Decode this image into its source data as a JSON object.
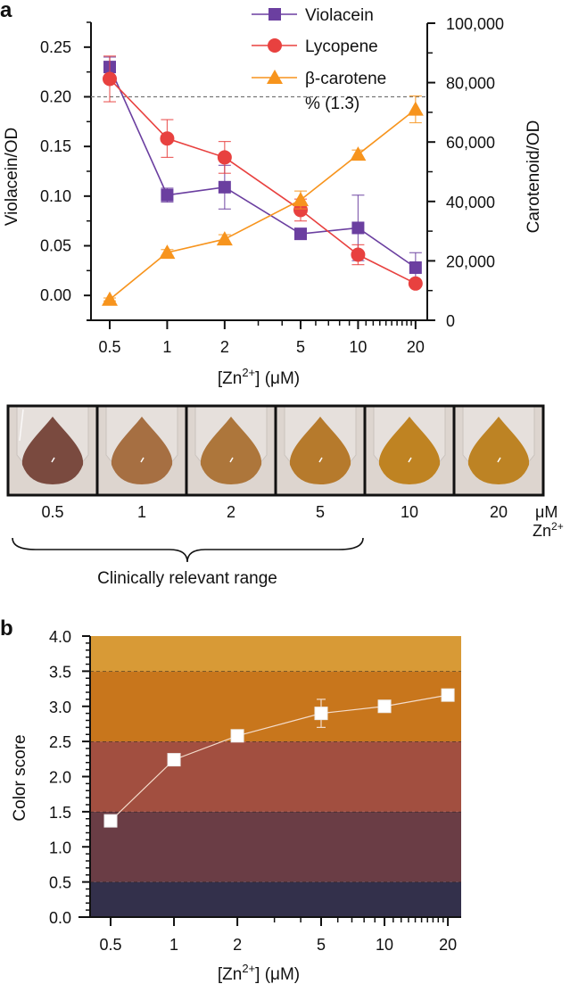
{
  "panels": {
    "a": "a",
    "b": "b"
  },
  "chart_data": [
    {
      "type": "line",
      "panel": "a",
      "x": [
        0.5,
        1,
        2,
        5,
        10,
        20
      ],
      "xscale": "log",
      "xlim": [
        0.4,
        23
      ],
      "xticks": [
        "0.5",
        "1",
        "2",
        "5",
        "10",
        "20"
      ],
      "xlabel": "[Zn2+] (μM)",
      "xlabel_parts": {
        "pre": "[Zn",
        "sup": "2+",
        "post": "] (μM)"
      },
      "ylabel": "Violacein/OD",
      "ylim": [
        -0.025,
        0.275
      ],
      "yticks": [
        "0.00",
        "0.05",
        "0.10",
        "0.15",
        "0.20",
        "0.25"
      ],
      "ylabel_right": "Carotenoid/OD",
      "ylim_right": [
        0,
        100000
      ],
      "yticks_right": [
        "0",
        "20,000",
        "40,000",
        "60,000",
        "80,000",
        "100,000"
      ],
      "reference_line": {
        "axis": "left",
        "value": 0.2,
        "style": "dashed"
      },
      "legend_position": "top-center",
      "series": [
        {
          "name": "Violacein",
          "axis": "left",
          "marker": "square",
          "color": "#6b3fa0",
          "values": [
            0.23,
            0.101,
            0.109,
            0.062,
            0.068,
            0.028
          ],
          "errors": [
            0.01,
            0.007,
            0.022,
            0.003,
            0.033,
            0.015
          ]
        },
        {
          "name": "Lycopene",
          "axis": "left",
          "marker": "circle",
          "color": "#e8413f",
          "values": [
            0.218,
            0.158,
            0.139,
            0.086,
            0.041,
            0.012
          ],
          "errors": [
            0.023,
            0.019,
            0.016,
            0.011,
            0.01,
            0.002
          ]
        },
        {
          "name": "β-carotene",
          "name_line2": "% (1.3)",
          "axis": "right",
          "marker": "triangle",
          "color": "#f7941d",
          "values": [
            7000,
            22800,
            27300,
            40500,
            55800,
            71000
          ],
          "errors": [
            500,
            1000,
            1500,
            3000,
            1500,
            4500
          ]
        }
      ]
    },
    {
      "type": "line",
      "panel": "b",
      "x": [
        0.5,
        1,
        2,
        5,
        10,
        20
      ],
      "xscale": "log",
      "xlim": [
        0.4,
        24
      ],
      "xticks": [
        "0.5",
        "1",
        "2",
        "5",
        "10",
        "20"
      ],
      "xlabel": "[Zn2+] (μM)",
      "xlabel_parts": {
        "pre": "[Zn",
        "sup": "2+",
        "post": "] (μM)"
      },
      "ylabel": "Color score",
      "ylim": [
        0,
        4
      ],
      "yticks": [
        "0.0",
        "0.5",
        "1.0",
        "1.5",
        "2.0",
        "2.5",
        "3.0",
        "3.5",
        "4.0"
      ],
      "background_bands": [
        {
          "from": 0,
          "to": 0.5,
          "color": "#33304b"
        },
        {
          "from": 0.5,
          "to": 1.5,
          "color": "#6a3d45"
        },
        {
          "from": 1.5,
          "to": 2.5,
          "color": "#a24f40"
        },
        {
          "from": 2.5,
          "to": 3.5,
          "color": "#c8761c"
        },
        {
          "from": 3.5,
          "to": 4.0,
          "color": "#d89a36"
        }
      ],
      "series": [
        {
          "name": "Color score",
          "marker": "square",
          "color": "#ffffff",
          "values": [
            1.37,
            2.24,
            2.58,
            2.9,
            3.0,
            3.16
          ],
          "errors": [
            0.02,
            0.03,
            0.03,
            0.2,
            0.03,
            0.03
          ]
        }
      ]
    }
  ],
  "photo_strip": {
    "samples": [
      {
        "label": "0.5",
        "liquid": "#7a4a3f"
      },
      {
        "label": "1",
        "liquid": "#a66f42"
      },
      {
        "label": "2",
        "liquid": "#ad763b"
      },
      {
        "label": "5",
        "liquid": "#b67a2c"
      },
      {
        "label": "10",
        "liquid": "#bf8322"
      },
      {
        "label": "20",
        "liquid": "#bd8324"
      }
    ],
    "unit_line1": "μM",
    "unit_line2_pre": "Zn",
    "unit_line2_sup": "2+",
    "range_label": "Clinically relevant range"
  }
}
